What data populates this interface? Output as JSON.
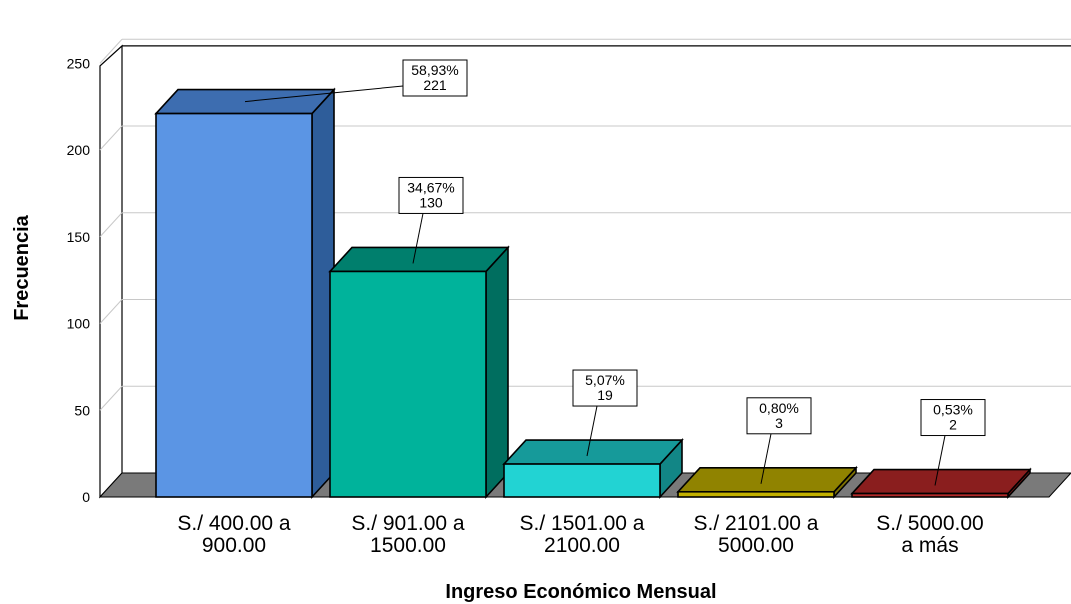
{
  "chart_data": {
    "type": "bar",
    "xlabel": "Ingreso Económico Mensual",
    "ylabel": "Frecuencia",
    "ylim": [
      0,
      250
    ],
    "yticks": [
      "0",
      "50",
      "100",
      "150",
      "200",
      "250"
    ],
    "grid": true,
    "categories": [
      [
        "S./ 400.00 a",
        "900.00"
      ],
      [
        "S./ 901.00 a",
        "1500.00"
      ],
      [
        "S./ 1501.00 a",
        "2100.00"
      ],
      [
        "S./ 2101.00 a",
        "5000.00"
      ],
      [
        "S./  5000.00",
        "a más"
      ]
    ],
    "values": [
      221,
      130,
      19,
      3,
      2
    ],
    "percent_labels": [
      "58,93%",
      "34,67%",
      "5,07%",
      "0,80%",
      "0,53%"
    ],
    "count_labels": [
      "221",
      "130",
      "19",
      "3",
      "2"
    ],
    "colors": [
      "#5b95e4",
      "#00b39b",
      "#22d3d3",
      "#c2b000",
      "#b22a2a"
    ],
    "side_colors": [
      "#2e5d9a",
      "#006e5f",
      "#128686",
      "#7c7000",
      "#7a1a1a"
    ],
    "top_colors": [
      "#3d6db0",
      "#007f6d",
      "#169a9a",
      "#908300",
      "#8a1e1e"
    ]
  }
}
